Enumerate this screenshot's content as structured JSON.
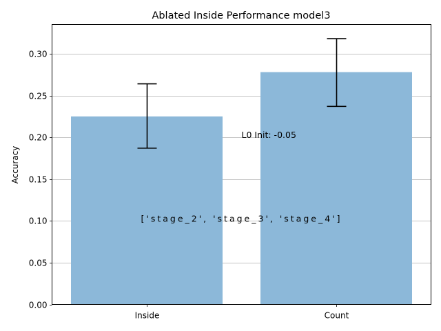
{
  "chart_data": {
    "type": "bar",
    "title": "Ablated Inside Performance model3",
    "xlabel": "",
    "ylabel": "Accuracy",
    "categories": [
      "Inside",
      "Count"
    ],
    "values": [
      0.225,
      0.278
    ],
    "errors": [
      {
        "low": 0.187,
        "high": 0.264
      },
      {
        "low": 0.237,
        "high": 0.318
      }
    ],
    "ylim": [
      0,
      0.335
    ],
    "yticks": [
      "0.00",
      "0.05",
      "0.10",
      "0.15",
      "0.20",
      "0.25",
      "0.30"
    ],
    "grid": "horizontal",
    "bar_color": "#8cb8d9",
    "annotations": [
      {
        "text": "L0 Init: -0.05",
        "x": 0.5,
        "y": 0.2
      },
      {
        "text": "['stage_2', 'stage_3', 'stage_4']",
        "x": 0.5,
        "y": 0.1
      }
    ]
  }
}
